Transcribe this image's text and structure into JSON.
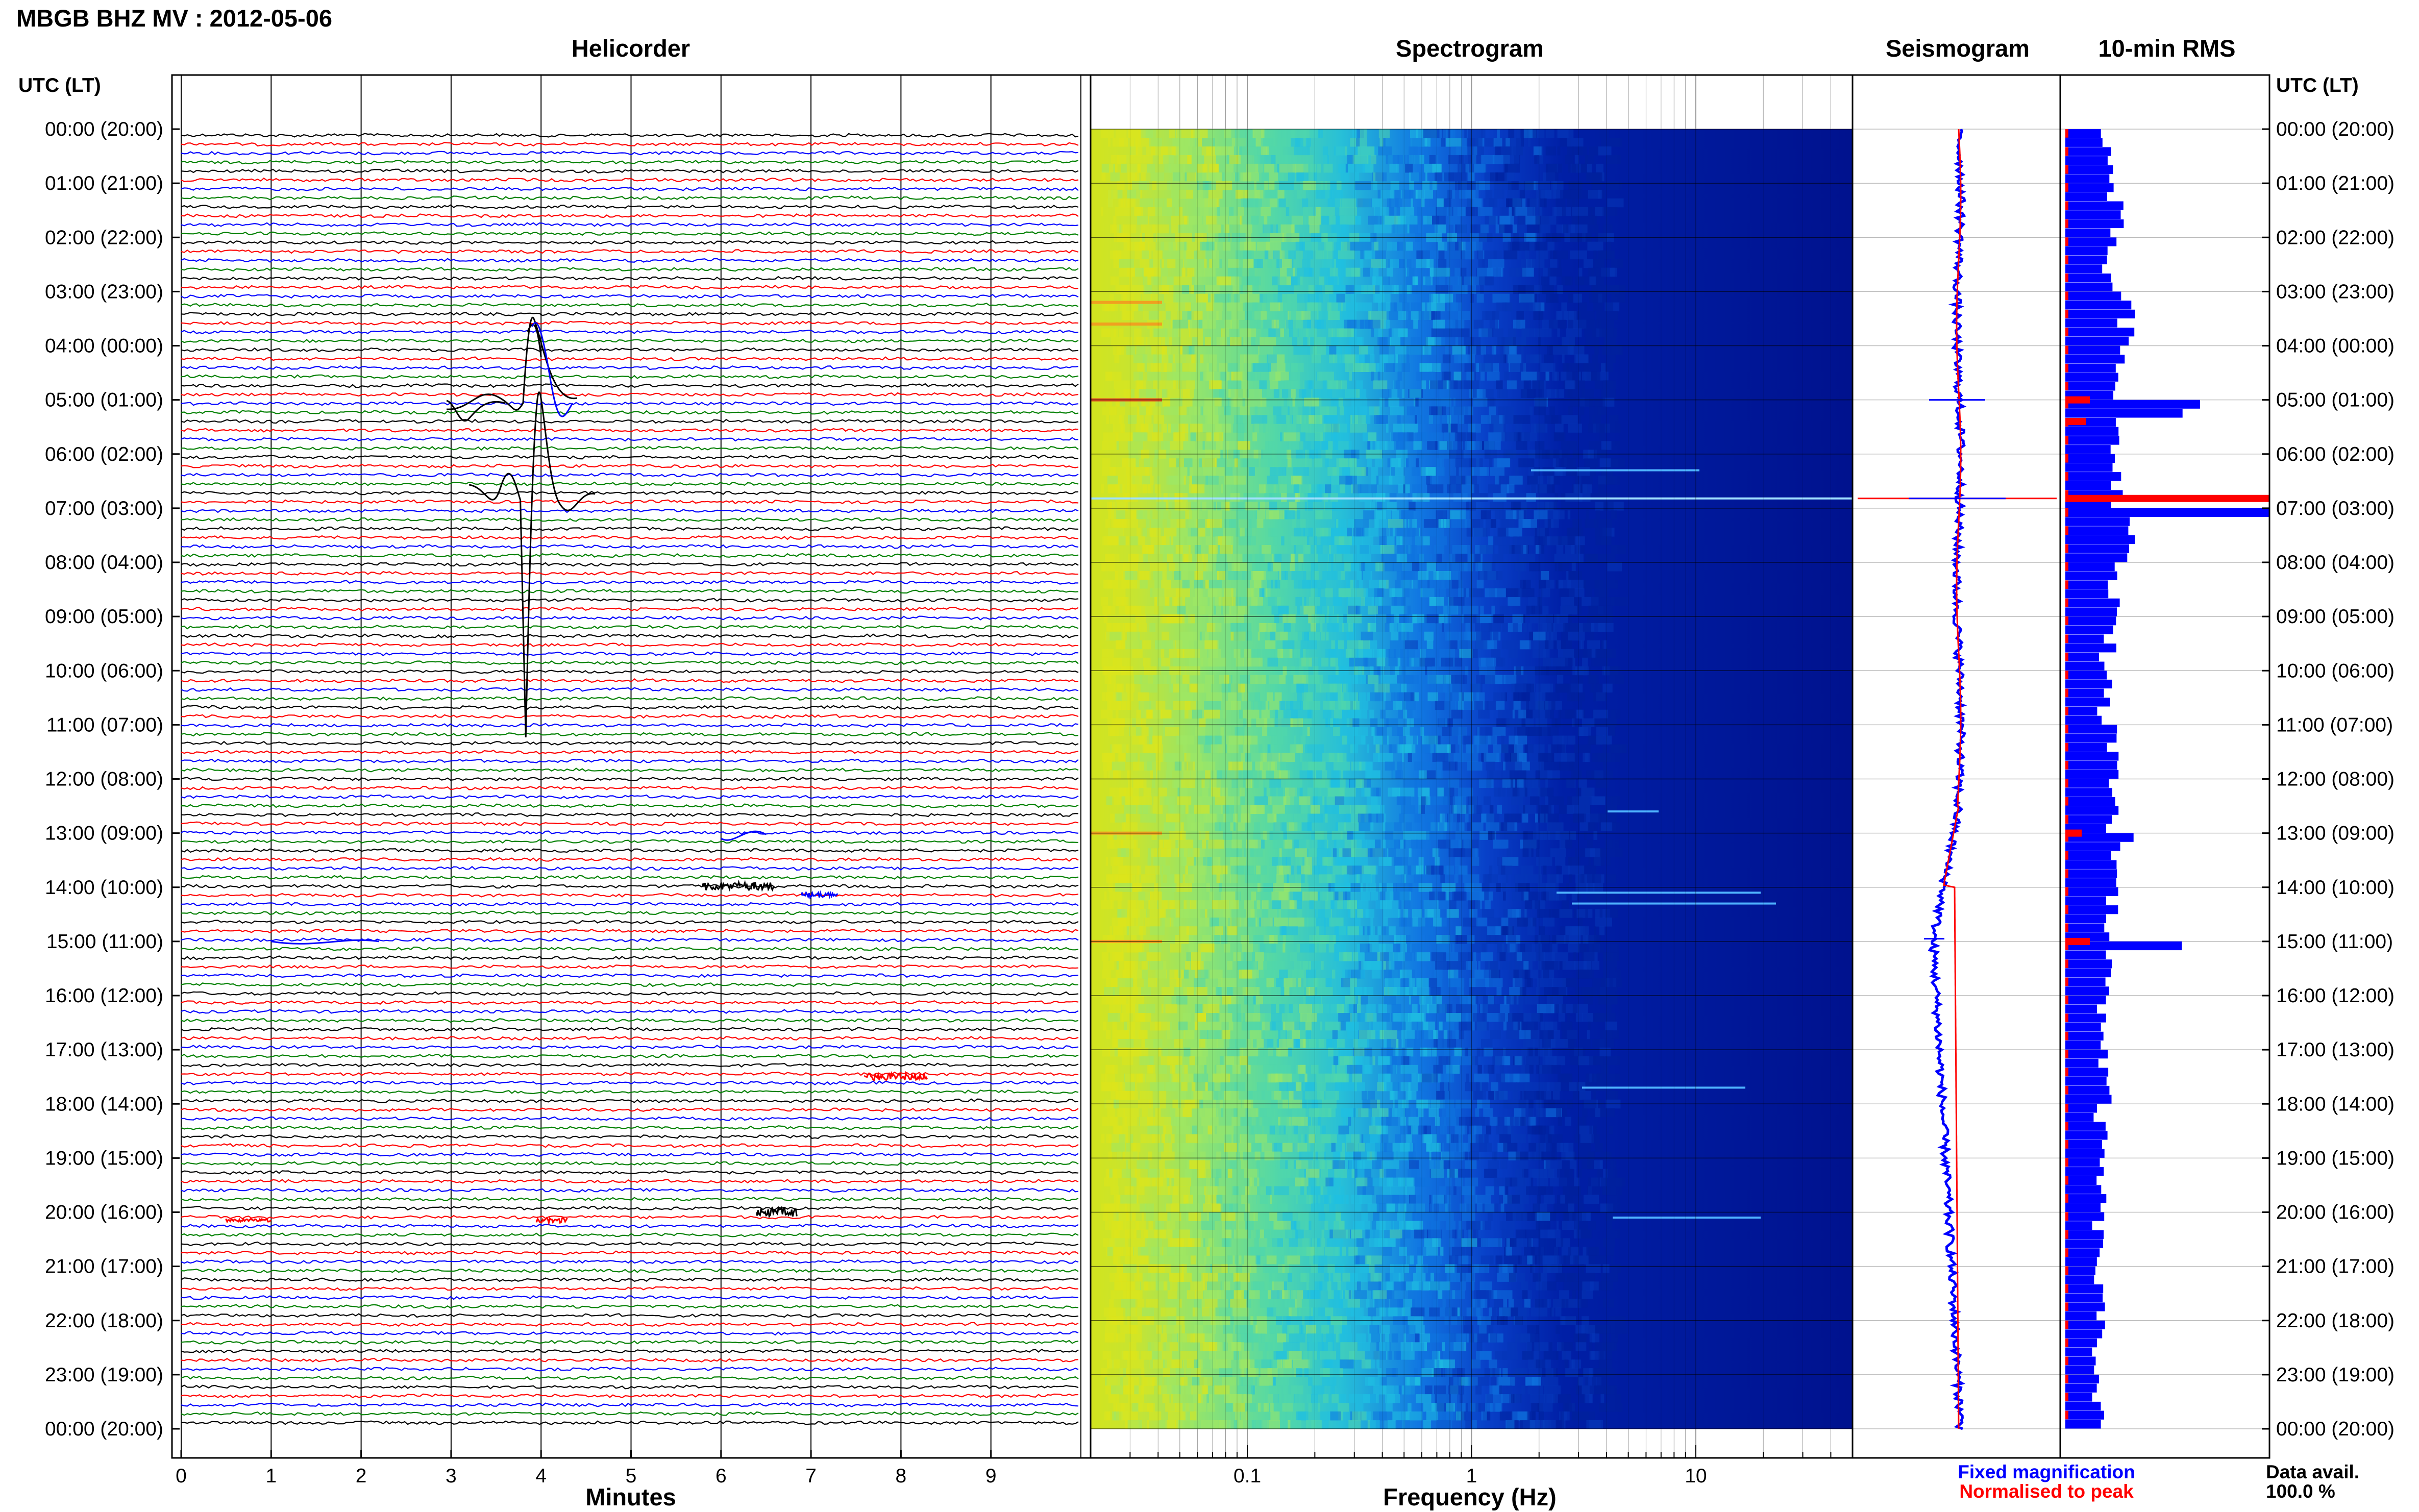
{
  "title": "MBGB BHZ MV : 2012-05-06",
  "panels": {
    "helicorder": "Helicorder",
    "spectrogram": "Spectrogram",
    "seismogram": "Seismogram",
    "rms": "10-min RMS"
  },
  "axes": {
    "time_label_left": "UTC (LT)",
    "time_label_right": "UTC (LT)",
    "helicorder_x_label": "Minutes",
    "spectrogram_x_label": "Frequency (Hz)"
  },
  "time_ticks": [
    "00:00 (20:00)",
    "01:00 (21:00)",
    "02:00 (22:00)",
    "03:00 (23:00)",
    "04:00 (00:00)",
    "05:00 (01:00)",
    "06:00 (02:00)",
    "07:00 (03:00)",
    "08:00 (04:00)",
    "09:00 (05:00)",
    "10:00 (06:00)",
    "11:00 (07:00)",
    "12:00 (08:00)",
    "13:00 (09:00)",
    "14:00 (10:00)",
    "15:00 (11:00)",
    "16:00 (12:00)",
    "17:00 (13:00)",
    "18:00 (14:00)",
    "19:00 (15:00)",
    "20:00 (16:00)",
    "21:00 (17:00)",
    "22:00 (18:00)",
    "23:00 (19:00)",
    "00:00 (20:00)"
  ],
  "minute_ticks": [
    "0",
    "1",
    "2",
    "3",
    "4",
    "5",
    "6",
    "7",
    "8",
    "9"
  ],
  "frequency_ticks": [
    "0.1",
    "1",
    "10"
  ],
  "legend": {
    "fixed": "Fixed magnification",
    "normalised": "Normalised to peak",
    "fixed_color": "#0000ff",
    "normalised_color": "#ff0000"
  },
  "data_availability": {
    "label": "Data avail.",
    "value": "100.0 %"
  },
  "chart_data": {
    "type": "heatmap",
    "title": "MBGB BHZ MV : 2012-05-06",
    "helicorder": {
      "xlabel": "Minutes",
      "xlim": [
        0,
        10
      ],
      "trace_colors": [
        "#000000",
        "#ff0000",
        "#0000ff",
        "#008000"
      ],
      "minutes_per_line": 10,
      "events": [
        {
          "time": "03:30",
          "minute_start": 3.0,
          "minute_end": 5.0,
          "description": "large long-period signal"
        },
        {
          "time": "13:00",
          "minute_start": 6.0,
          "minute_end": 6.5
        },
        {
          "time": "14:00",
          "minute_start": 5.8,
          "minute_end": 6.7
        },
        {
          "time": "14:10",
          "minute_start": 6.9,
          "minute_end": 7.3
        },
        {
          "time": "17:20",
          "minute_start": 7.6,
          "minute_end": 8.3
        },
        {
          "time": "20:00",
          "minute_start": 6.4,
          "minute_end": 6.8
        }
      ]
    },
    "spectrogram": {
      "xlabel": "Frequency (Hz)",
      "xscale": "log",
      "xlim": [
        0.02,
        50
      ],
      "colormap": "jet"
    },
    "rms": {
      "type": "bar",
      "unit": "10-min",
      "fixed_color": "#0000ff",
      "normalised_color": "#ff0000",
      "values_hourly_relative": [
        0.22,
        0.25,
        0.22,
        0.3,
        0.28,
        0.6,
        0.26,
        1.0,
        0.27,
        0.22,
        0.2,
        0.23,
        0.24,
        0.4,
        0.24,
        0.65,
        0.2,
        0.2,
        0.18,
        0.18,
        0.17,
        0.17,
        0.17,
        0.17
      ]
    },
    "seismogram": {
      "fixed_color": "#0000ff",
      "normalised_color": "#ff0000"
    }
  }
}
